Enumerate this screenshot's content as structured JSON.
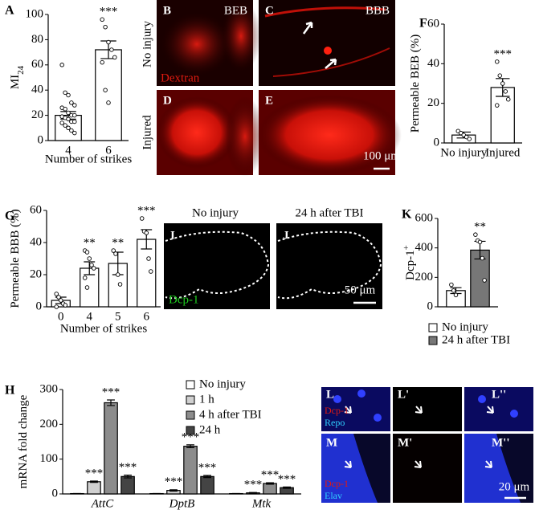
{
  "chart_data": [
    {
      "panel": "A",
      "type": "bar",
      "ylabel": "MI",
      "ylabel_sub": "24",
      "xlabel": "Number of strikes",
      "categories": [
        "4",
        "6"
      ],
      "values": [
        20,
        72
      ],
      "errors": [
        3,
        7
      ],
      "significance": [
        null,
        "***"
      ],
      "points": [
        [
          60,
          38,
          36,
          30,
          28,
          26,
          25,
          22,
          20,
          20,
          19,
          18,
          17,
          15,
          15,
          14,
          12,
          10,
          8,
          6
        ],
        [
          96,
          90,
          78,
          72,
          66,
          62,
          40,
          30
        ]
      ],
      "color": "#ffffff",
      "ylim": [
        0,
        100
      ],
      "yticks": [
        0,
        20,
        40,
        60,
        80,
        100
      ]
    },
    {
      "panel": "F",
      "type": "bar",
      "ylabel": "Permeable BEB (%)",
      "categories": [
        "No injury",
        "Injured"
      ],
      "values": [
        4,
        28
      ],
      "errors": [
        1.5,
        4.5
      ],
      "significance": [
        null,
        "***"
      ],
      "points": [
        [
          6,
          5,
          4,
          3,
          2
        ],
        [
          41,
          34,
          30,
          26,
          22,
          19
        ]
      ],
      "color": "#ffffff",
      "ylim": [
        0,
        60
      ],
      "yticks": [
        0,
        20,
        40,
        60
      ]
    },
    {
      "panel": "G",
      "type": "bar",
      "ylabel": "Permeable BBB (%)",
      "xlabel": "Number of strikes",
      "categories": [
        "0",
        "4",
        "5",
        "6"
      ],
      "values": [
        4,
        24,
        27,
        42
      ],
      "errors": [
        2,
        4,
        7,
        6
      ],
      "significance": [
        null,
        "**",
        "**",
        "***"
      ],
      "points": [
        [
          8,
          6,
          4,
          2,
          1,
          0
        ],
        [
          35,
          34,
          30,
          26,
          24,
          18,
          12
        ],
        [
          35,
          33,
          20,
          14
        ],
        [
          55,
          47,
          46,
          30,
          22
        ]
      ],
      "color": "#ffffff",
      "ylim": [
        0,
        60
      ],
      "yticks": [
        0,
        20,
        40,
        60
      ]
    },
    {
      "panel": "K",
      "type": "bar",
      "ylabel": "Dcp-1",
      "ylabel_sup": "+",
      "series": [
        {
          "name": "No injury",
          "color": "#ffffff",
          "values": [
            110
          ],
          "errors": [
            20
          ],
          "significance": [
            null
          ],
          "points": [
            [
              150,
              110,
              80
            ]
          ]
        },
        {
          "name": "24 h after TBI",
          "color": "#777777",
          "values": [
            385
          ],
          "errors": [
            60
          ],
          "significance": [
            "**"
          ],
          "points": [
            [
              490,
              450,
              440,
              330,
              180
            ]
          ]
        }
      ],
      "legend": "bottom",
      "ylim": [
        0,
        600
      ],
      "yticks": [
        0,
        200,
        400,
        600
      ]
    },
    {
      "panel": "H",
      "type": "bar",
      "ylabel": "mRNA fold change",
      "categories": [
        "AttC",
        "DptB",
        "Mtk"
      ],
      "series": [
        {
          "name": "No injury",
          "color": "#ffffff",
          "values": [
            1,
            1,
            1
          ],
          "errors": [
            0.2,
            0.2,
            0.2
          ],
          "significance": [
            null,
            null,
            null
          ]
        },
        {
          "name": "1 h",
          "color": "#d0d0d0",
          "values": [
            35,
            10,
            3
          ],
          "errors": [
            2,
            2,
            1
          ],
          "significance": [
            "***",
            "***",
            "***"
          ]
        },
        {
          "name": "4 h after TBI",
          "color": "#8c8c8c",
          "values": [
            262,
            137,
            30
          ],
          "errors": [
            8,
            4,
            2
          ],
          "significance": [
            "***",
            "***",
            "***"
          ]
        },
        {
          "name": "24 h",
          "color": "#444444",
          "values": [
            50,
            50,
            18
          ],
          "errors": [
            4,
            3,
            2
          ],
          "significance": [
            "***",
            "***",
            "***"
          ]
        }
      ],
      "legend": "top",
      "ylim": [
        0,
        300
      ],
      "yticks": [
        0,
        100,
        200,
        300
      ]
    }
  ],
  "images": {
    "B": {
      "label": "B",
      "tag": "BEB",
      "stain": "Dextran"
    },
    "C": {
      "label": "C",
      "tag": "BBB"
    },
    "D": {
      "label": "D"
    },
    "E": {
      "label": "E",
      "scale": "100 μm"
    },
    "row_labels": [
      "No injury",
      "Injured"
    ],
    "I": {
      "label": "I",
      "stain": "Dcp-1"
    },
    "J": {
      "label": "J",
      "scale": "50 μm"
    },
    "column_titles": [
      "No injury",
      "24 h after TBI"
    ],
    "L": {
      "label": "L",
      "stain": [
        "Dcp-1",
        "Repo"
      ]
    },
    "L1": {
      "label": "L'"
    },
    "L2": {
      "label": "L''"
    },
    "M": {
      "label": "M",
      "stain": [
        "Dcp-1",
        "Elav"
      ]
    },
    "M1": {
      "label": "M'"
    },
    "M2": {
      "label": "M''",
      "scale": "20 μm"
    }
  }
}
